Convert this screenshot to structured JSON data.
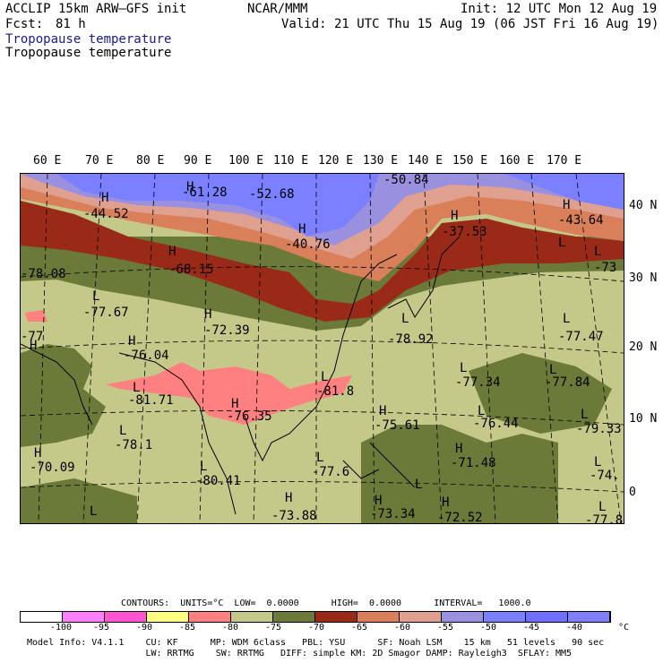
{
  "header": {
    "model": "ACCLIP 15km ARW–GFS init",
    "center": "NCAR/MMM",
    "init": "Init: 12 UTC Mon 12 Aug 19",
    "fcst_label": "Fcst:",
    "fcst_value": "81 h",
    "valid": "Valid: 21 UTC Thu 15 Aug 19 (06 JST Fri 16 Aug 19)",
    "field_title_1": "Tropopause temperature",
    "field_title_2": "Tropopause temperature"
  },
  "map": {
    "lon_labels": [
      "60 E",
      "70 E",
      "80 E",
      "90 E",
      "100 E",
      "110 E",
      "120 E",
      "130 E",
      "140 E",
      "150 E",
      "160 E",
      "170 E"
    ],
    "lat_labels": [
      "40 N",
      "30 N",
      "20 N",
      "10 N",
      "0"
    ],
    "hl_labels": [
      {
        "text": "H"
      },
      {
        "text": "-44.52"
      },
      {
        "text": "H"
      },
      {
        "text": "-61.28"
      },
      {
        "text": "-52.68"
      },
      {
        "text": "-50.84"
      },
      {
        "text": "H"
      },
      {
        "text": "-40.76"
      },
      {
        "text": "H"
      },
      {
        "text": "-37.53"
      },
      {
        "text": "H"
      },
      {
        "text": "-43.64"
      },
      {
        "text": "L"
      },
      {
        "text": "-73"
      },
      {
        "text": "H"
      },
      {
        "text": "-68.15"
      },
      {
        "text": "-78.08"
      },
      {
        "text": "L"
      },
      {
        "text": "-77.67"
      },
      {
        "text": "H"
      },
      {
        "text": "-72.39"
      },
      {
        "text": "L"
      },
      {
        "text": "-78.92"
      },
      {
        "text": "L"
      },
      {
        "text": "-77.47"
      },
      {
        "text": "H"
      },
      {
        "text": "-76.04"
      },
      {
        "text": "L"
      },
      {
        "text": "-81.71"
      },
      {
        "text": "L"
      },
      {
        "text": "-81.8"
      },
      {
        "text": "L"
      },
      {
        "text": "-77.34"
      },
      {
        "text": "L"
      },
      {
        "text": "-77.84"
      },
      {
        "text": "H"
      },
      {
        "text": "-76.35"
      },
      {
        "text": "H"
      },
      {
        "text": "-75.61"
      },
      {
        "text": "L"
      },
      {
        "text": "-76.44"
      },
      {
        "text": "L"
      },
      {
        "text": "-79.33"
      },
      {
        "text": "L"
      },
      {
        "text": "-78.1"
      },
      {
        "text": "H"
      },
      {
        "text": "-70.09"
      },
      {
        "text": "L"
      },
      {
        "text": "-80.41"
      },
      {
        "text": "L"
      },
      {
        "text": "-77.6"
      },
      {
        "text": "H"
      },
      {
        "text": "-71.48"
      },
      {
        "text": "L"
      },
      {
        "text": "-74."
      },
      {
        "text": "H"
      },
      {
        "text": "-73.88"
      },
      {
        "text": "H"
      },
      {
        "text": "-73.34"
      },
      {
        "text": "H"
      },
      {
        "text": "-72.52"
      },
      {
        "text": "L"
      },
      {
        "text": "-77.8"
      },
      {
        "text": "-77"
      },
      {
        "text": "H"
      },
      {
        "text": "L"
      },
      {
        "text": "L"
      },
      {
        "text": "L"
      }
    ]
  },
  "contours_line": "CONTOURS:  UNITS=°C  LOW=  0.0000      HIGH=  0.0000      INTERVAL=   1000.0",
  "colorbar": {
    "colors": [
      "#ffffff",
      "#ff80ff",
      "#ff55d0",
      "#ffff80",
      "#ff8080",
      "#c4c888",
      "#6b7a38",
      "#9a2a18",
      "#d9805a",
      "#e0a090",
      "#9a90e0",
      "#7a80ff",
      "#7070ff",
      "#8080ff"
    ],
    "ticks": [
      "-100",
      "-95",
      "-90",
      "-85",
      "-80",
      "-75",
      "-70",
      "-65",
      "-60",
      "-55",
      "-50",
      "-45",
      "-40"
    ],
    "unit": "°C"
  },
  "footer": {
    "line1": "Model Info: V4.1.1    CU: KF      MP: WDM 6class   PBL: YSU      SF: Noah LSM    15 km   51 levels   90 sec",
    "line2": "                      LW: RRTMG    SW: RRTMG   DIFF: simple KM: 2D Smagor DAMP: Rayleigh3  SFLAY: MM5"
  }
}
